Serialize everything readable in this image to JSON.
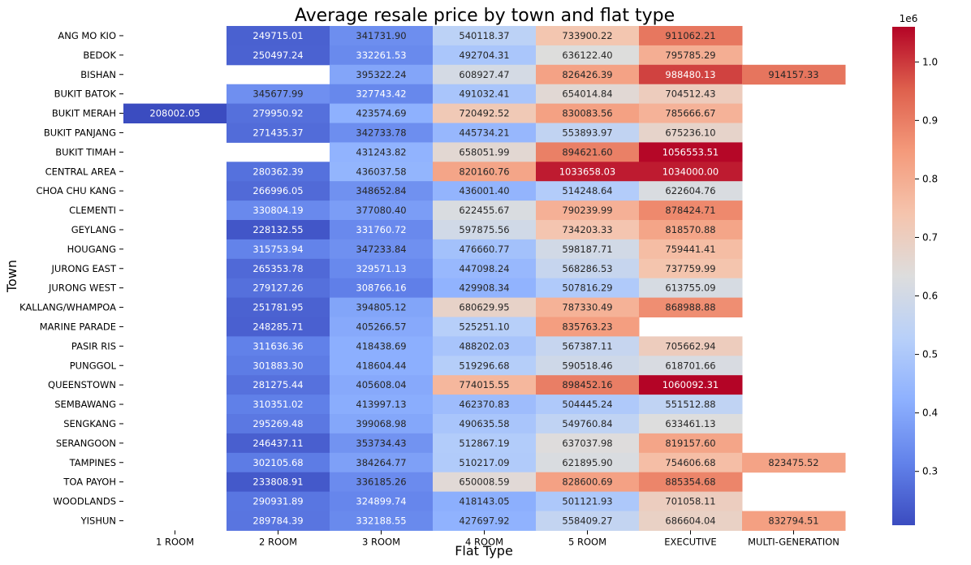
{
  "chart_data": {
    "type": "heatmap",
    "title": "Average resale price by town and flat type",
    "xlabel": "Flat Type",
    "ylabel": "Town",
    "colormap": "coolwarm",
    "vmin": 208002.05,
    "vmax": 1060092.31,
    "x_categories": [
      "1 ROOM",
      "2 ROOM",
      "3 ROOM",
      "4 ROOM",
      "5 ROOM",
      "EXECUTIVE",
      "MULTI-GENERATION"
    ],
    "y_categories": [
      "ANG MO KIO",
      "BEDOK",
      "BISHAN",
      "BUKIT BATOK",
      "BUKIT MERAH",
      "BUKIT PANJANG",
      "BUKIT TIMAH",
      "CENTRAL AREA",
      "CHOA CHU KANG",
      "CLEMENTI",
      "GEYLANG",
      "HOUGANG",
      "JURONG EAST",
      "JURONG WEST",
      "KALLANG/WHAMPOA",
      "MARINE PARADE",
      "PASIR RIS",
      "PUNGGOL",
      "QUEENSTOWN",
      "SEMBAWANG",
      "SENGKANG",
      "SERANGOON",
      "TAMPINES",
      "TOA PAYOH",
      "WOODLANDS",
      "YISHUN"
    ],
    "values": [
      [
        null,
        249715.01,
        341731.9,
        540118.37,
        733900.22,
        911062.21,
        null
      ],
      [
        null,
        250497.24,
        332261.53,
        492704.31,
        636122.4,
        795785.29,
        null
      ],
      [
        null,
        null,
        395322.24,
        608927.47,
        826426.39,
        988480.13,
        914157.33
      ],
      [
        null,
        345677.99,
        327743.42,
        491032.41,
        654014.84,
        704512.43,
        null
      ],
      [
        208002.05,
        279950.92,
        423574.69,
        720492.52,
        830083.56,
        785666.67,
        null
      ],
      [
        null,
        271435.37,
        342733.78,
        445734.21,
        553893.97,
        675236.1,
        null
      ],
      [
        null,
        null,
        431243.82,
        658051.99,
        894621.6,
        1056553.51,
        null
      ],
      [
        null,
        280362.39,
        436037.58,
        820160.76,
        1033658.03,
        1034000.0,
        null
      ],
      [
        null,
        266996.05,
        348652.84,
        436001.4,
        514248.64,
        622604.76,
        null
      ],
      [
        null,
        330804.19,
        377080.4,
        622455.67,
        790239.99,
        878424.71,
        null
      ],
      [
        null,
        228132.55,
        331760.72,
        597875.56,
        734203.33,
        818570.88,
        null
      ],
      [
        null,
        315753.94,
        347233.84,
        476660.77,
        598187.71,
        759441.41,
        null
      ],
      [
        null,
        265353.78,
        329571.13,
        447098.24,
        568286.53,
        737759.99,
        null
      ],
      [
        null,
        279127.26,
        308766.16,
        429908.34,
        507816.29,
        613755.09,
        null
      ],
      [
        null,
        251781.95,
        394805.12,
        680629.95,
        787330.49,
        868988.88,
        null
      ],
      [
        null,
        248285.71,
        405266.57,
        525251.1,
        835763.23,
        null,
        null
      ],
      [
        null,
        311636.36,
        418438.69,
        488202.03,
        567387.11,
        705662.94,
        null
      ],
      [
        null,
        301883.3,
        418604.44,
        519296.68,
        590518.46,
        618701.66,
        null
      ],
      [
        null,
        281275.44,
        405608.04,
        774015.55,
        898452.16,
        1060092.31,
        null
      ],
      [
        null,
        310351.02,
        413997.13,
        462370.83,
        504445.24,
        551512.88,
        null
      ],
      [
        null,
        295269.48,
        399068.98,
        490635.58,
        549760.84,
        633461.13,
        null
      ],
      [
        null,
        246437.11,
        353734.43,
        512867.19,
        637037.98,
        819157.6,
        null
      ],
      [
        null,
        302105.68,
        384264.77,
        510217.09,
        621895.9,
        754606.68,
        823475.52
      ],
      [
        null,
        233808.91,
        336185.26,
        650008.59,
        828600.69,
        885354.68,
        null
      ],
      [
        null,
        290931.89,
        324899.74,
        418143.05,
        501121.93,
        701058.11,
        null
      ],
      [
        null,
        289784.39,
        332188.55,
        427697.92,
        558409.27,
        686604.04,
        832794.51
      ]
    ],
    "colorbar": {
      "ticks": [
        0.3,
        0.4,
        0.5,
        0.6,
        0.7,
        0.8,
        0.9,
        1.0
      ],
      "tick_labels": [
        "0.3",
        "0.4",
        "0.5",
        "0.6",
        "0.7",
        "0.8",
        "0.9",
        "1.0"
      ],
      "scale_label": "1e6",
      "tick_multiplier": 1000000
    }
  }
}
